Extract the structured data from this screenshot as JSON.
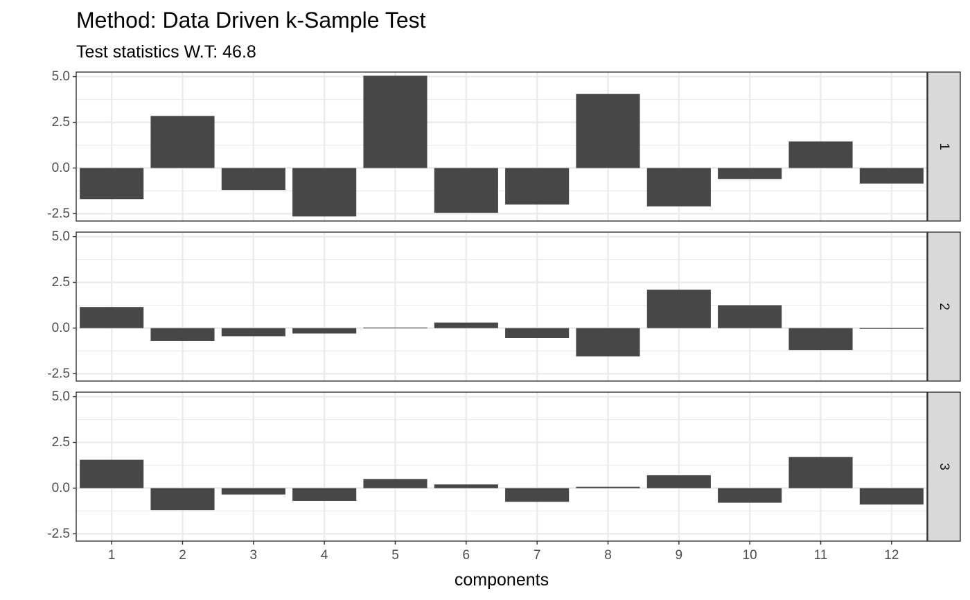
{
  "chart_data": {
    "type": "bar",
    "title": "Method: Data Driven k-Sample Test",
    "subtitle": "Test statistics W.T: 46.8",
    "xlabel": "components",
    "ylabel": "",
    "categories": [
      "1",
      "2",
      "3",
      "4",
      "5",
      "6",
      "7",
      "8",
      "9",
      "10",
      "11",
      "12"
    ],
    "ylim": [
      -2.9,
      5.25
    ],
    "y_ticks": [
      -2.5,
      0.0,
      2.5,
      5.0
    ],
    "y_tick_labels": [
      "-2.5",
      "0.0",
      "2.5",
      "5.0"
    ],
    "grid": true,
    "facet_strip_position": "right",
    "bar_color": "#474747",
    "series": [
      {
        "facet": "1",
        "values": [
          -1.7,
          2.85,
          -1.2,
          -2.65,
          5.05,
          -2.45,
          -2.0,
          4.05,
          -2.1,
          -0.6,
          1.45,
          -0.85
        ]
      },
      {
        "facet": "2",
        "values": [
          1.15,
          -0.7,
          -0.45,
          -0.3,
          0.03,
          0.3,
          -0.55,
          -1.55,
          2.1,
          1.25,
          -1.2,
          -0.05
        ]
      },
      {
        "facet": "3",
        "values": [
          1.55,
          -1.2,
          -0.35,
          -0.7,
          0.5,
          0.2,
          -0.75,
          0.07,
          0.7,
          -0.8,
          1.7,
          -0.9
        ]
      }
    ]
  }
}
